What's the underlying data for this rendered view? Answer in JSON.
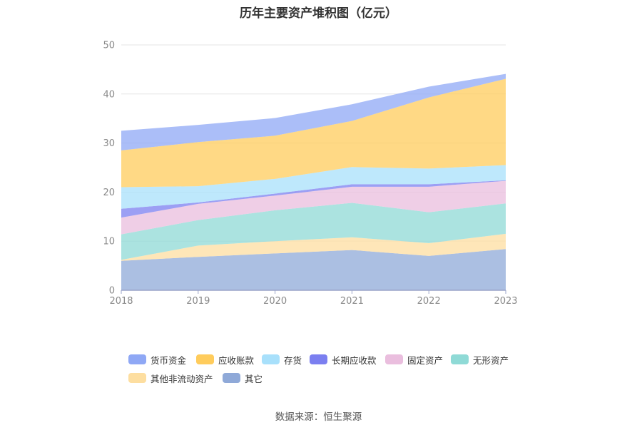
{
  "chart_data": {
    "type": "area",
    "stacked": true,
    "title": "历年主要资产堆积图（亿元）",
    "x": [
      "2018",
      "2019",
      "2020",
      "2021",
      "2022",
      "2023"
    ],
    "ylim": [
      0,
      50
    ],
    "yticks": [
      0,
      10,
      20,
      30,
      40,
      50
    ],
    "grid": true,
    "legend_position": "bottom",
    "series": [
      {
        "name": "其它",
        "color": "#8fa9d8",
        "values": [
          6.0,
          6.8,
          7.5,
          8.2,
          7.0,
          8.4
        ]
      },
      {
        "name": "其他非流动资产",
        "color": "#fddea0",
        "values": [
          0.2,
          2.3,
          2.5,
          2.6,
          2.6,
          3.1
        ]
      },
      {
        "name": "无形资产",
        "color": "#8fdad6",
        "values": [
          5.2,
          5.2,
          6.3,
          7.0,
          6.3,
          6.2
        ]
      },
      {
        "name": "固定资产",
        "color": "#eabede",
        "values": [
          3.4,
          3.3,
          3.0,
          3.3,
          5.2,
          4.6
        ]
      },
      {
        "name": "长期应收款",
        "color": "#7b7ff0",
        "values": [
          1.8,
          0.3,
          0.4,
          0.5,
          0.5,
          0.1
        ]
      },
      {
        "name": "存货",
        "color": "#a8e0fb",
        "values": [
          4.4,
          3.3,
          3.0,
          3.5,
          3.2,
          3.1
        ]
      },
      {
        "name": "应收账款",
        "color": "#ffcc5c",
        "values": [
          7.5,
          9.0,
          8.8,
          9.4,
          14.5,
          17.6
        ]
      },
      {
        "name": "货币资金",
        "color": "#8fa8f5",
        "values": [
          4.0,
          3.5,
          3.6,
          3.4,
          2.2,
          1.0
        ]
      }
    ],
    "legend_order": [
      "货币资金",
      "应收账款",
      "存货",
      "长期应收款",
      "固定资产",
      "无形资产",
      "其他非流动资产",
      "其它"
    ]
  },
  "source_text": "数据来源：恒生聚源"
}
